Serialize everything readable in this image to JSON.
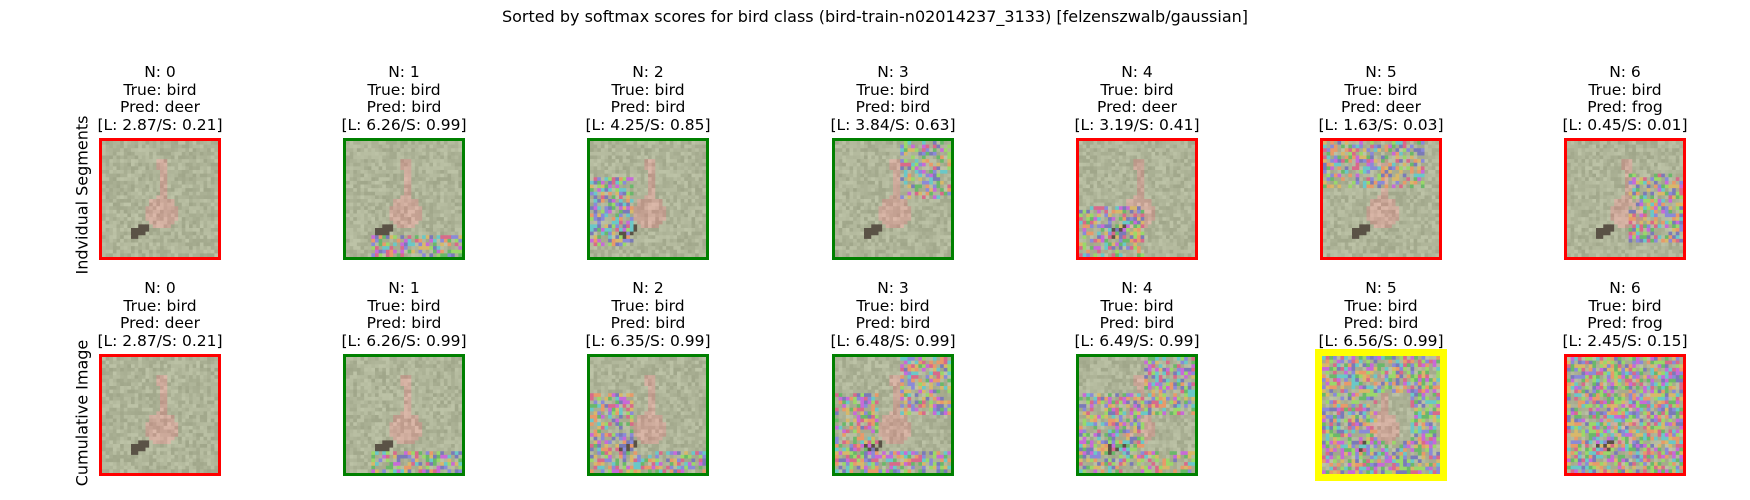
{
  "figure": {
    "title": "Sorted by softmax scores for bird class (bird-train-n02014237_3133) [felzenszwalb/gaussian]",
    "row_labels": [
      "Indvidual Segments",
      "Cumulative Image"
    ]
  },
  "colors": {
    "correct": "#008000",
    "incorrect": "#ff0000",
    "highlight": "#ffff00",
    "background_grass": "#a8ab8d",
    "bird": "#b89a8a"
  },
  "rows": [
    {
      "name": "individual-segments",
      "panels": [
        {
          "n": "N: 0",
          "true": "True: bird",
          "pred": "Pred: deer",
          "ls": "[L: 2.87/S: 0.21]",
          "status": "incorrect",
          "noise": 0.0,
          "region": "none"
        },
        {
          "n": "N: 1",
          "true": "True: bird",
          "pred": "Pred: bird",
          "ls": "[L: 6.26/S: 0.99]",
          "status": "correct",
          "noise": 0.7,
          "region": "bottom-strip"
        },
        {
          "n": "N: 2",
          "true": "True: bird",
          "pred": "Pred: bird",
          "ls": "[L: 4.25/S: 0.85]",
          "status": "correct",
          "noise": 0.7,
          "region": "left-middle"
        },
        {
          "n": "N: 3",
          "true": "True: bird",
          "pred": "Pred: bird",
          "ls": "[L: 3.84/S: 0.63]",
          "status": "correct",
          "noise": 0.6,
          "region": "top-right"
        },
        {
          "n": "N: 4",
          "true": "True: bird",
          "pred": "Pred: deer",
          "ls": "[L: 3.19/S: 0.41]",
          "status": "incorrect",
          "noise": 0.7,
          "region": "bottom-left"
        },
        {
          "n": "N: 5",
          "true": "True: bird",
          "pred": "Pred: deer",
          "ls": "[L: 1.63/S: 0.03]",
          "status": "incorrect",
          "noise": 0.7,
          "region": "top-band"
        },
        {
          "n": "N: 6",
          "true": "True: bird",
          "pred": "Pred: frog",
          "ls": "[L: 0.45/S: 0.01]",
          "status": "incorrect",
          "noise": 0.7,
          "region": "right-middle"
        }
      ]
    },
    {
      "name": "cumulative-image",
      "panels": [
        {
          "n": "N: 0",
          "true": "True: bird",
          "pred": "Pred: deer",
          "ls": "[L: 2.87/S: 0.21]",
          "status": "incorrect",
          "noise": 0.0,
          "region": "none"
        },
        {
          "n": "N: 1",
          "true": "True: bird",
          "pred": "Pred: bird",
          "ls": "[L: 6.26/S: 0.99]",
          "status": "correct",
          "noise": 0.7,
          "region": "bottom-strip"
        },
        {
          "n": "N: 2",
          "true": "True: bird",
          "pred": "Pred: bird",
          "ls": "[L: 6.35/S: 0.99]",
          "status": "correct",
          "noise": 0.7,
          "region": "cum-2"
        },
        {
          "n": "N: 3",
          "true": "True: bird",
          "pred": "Pred: bird",
          "ls": "[L: 6.48/S: 0.99]",
          "status": "correct",
          "noise": 0.7,
          "region": "cum-3"
        },
        {
          "n": "N: 4",
          "true": "True: bird",
          "pred": "Pred: bird",
          "ls": "[L: 6.49/S: 0.99]",
          "status": "correct",
          "noise": 0.7,
          "region": "cum-4"
        },
        {
          "n": "N: 5",
          "true": "True: bird",
          "pred": "Pred: bird",
          "ls": "[L: 6.56/S: 0.99]",
          "status": "highlight",
          "noise": 0.75,
          "region": "cum-5"
        },
        {
          "n": "N: 6",
          "true": "True: bird",
          "pred": "Pred: frog",
          "ls": "[L: 2.45/S: 0.15]",
          "status": "incorrect",
          "noise": 0.8,
          "region": "all"
        }
      ]
    }
  ]
}
